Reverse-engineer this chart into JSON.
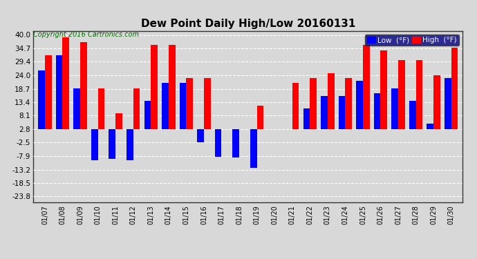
{
  "title": "Dew Point Daily High/Low 20160131",
  "copyright": "Copyright 2016 Cartronics.com",
  "dates": [
    "01/07",
    "01/08",
    "01/09",
    "01/10",
    "01/11",
    "01/12",
    "01/13",
    "01/14",
    "01/15",
    "01/16",
    "01/17",
    "01/18",
    "01/19",
    "01/20",
    "01/21",
    "01/22",
    "01/23",
    "01/24",
    "01/25",
    "01/26",
    "01/27",
    "01/28",
    "01/29",
    "01/30"
  ],
  "high": [
    32.0,
    39.0,
    37.0,
    19.0,
    9.0,
    19.0,
    36.0,
    36.0,
    23.0,
    23.0,
    2.8,
    2.8,
    12.0,
    2.8,
    21.0,
    23.0,
    25.0,
    23.0,
    36.0,
    34.0,
    30.0,
    30.0,
    24.0,
    35.0
  ],
  "low": [
    26.0,
    32.0,
    19.0,
    -9.5,
    -9.0,
    -9.5,
    14.0,
    21.0,
    21.0,
    -2.5,
    -8.0,
    -8.5,
    -12.5,
    2.8,
    2.8,
    11.0,
    16.0,
    16.0,
    22.0,
    17.0,
    19.0,
    14.0,
    5.0,
    23.0
  ],
  "high_color": "#ff0000",
  "low_color": "#0000ff",
  "bg_color": "#d8d8d8",
  "plot_bg": "#d8d8d8",
  "grid_color": "#ffffff",
  "yticks": [
    40.0,
    34.7,
    29.4,
    24.0,
    18.7,
    13.4,
    8.1,
    2.8,
    -2.5,
    -7.9,
    -13.2,
    -18.5,
    -23.8
  ],
  "ylim": [
    -26.0,
    41.5
  ],
  "bar_width": 0.38,
  "title_fontsize": 11,
  "copyright_fontsize": 7,
  "baseline": 2.8
}
